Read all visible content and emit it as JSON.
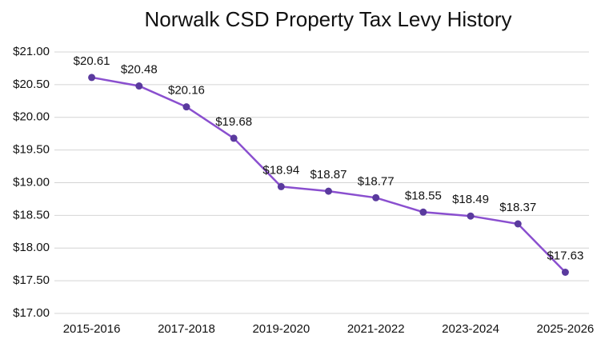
{
  "chart_data": {
    "type": "line",
    "title": "Norwalk CSD Property Tax Levy History",
    "categories": [
      "2015-2016",
      null,
      "2017-2018",
      null,
      "2019-2020",
      null,
      "2021-2022",
      null,
      "2023-2024",
      null,
      "2025-2026"
    ],
    "series": [
      {
        "name": "Property Tax Levy",
        "color": "#8a4fcf",
        "marker_color": "#5a3a9e",
        "values": [
          20.61,
          20.48,
          20.16,
          19.68,
          18.94,
          18.87,
          18.77,
          18.55,
          18.49,
          18.37,
          17.63
        ],
        "value_labels": [
          "$20.61",
          "$20.48",
          "$20.16",
          "$19.68",
          "$18.94",
          "$18.87",
          "$18.77",
          "$18.55",
          "$18.49",
          "$18.37",
          "$17.63"
        ]
      }
    ],
    "ylim": [
      17,
      21
    ],
    "yticks": [
      {
        "value": 17,
        "label": "$17.00"
      },
      {
        "value": 17.5,
        "label": "$17.50"
      },
      {
        "value": 18,
        "label": "$18.00"
      },
      {
        "value": 18.5,
        "label": "$18.50"
      },
      {
        "value": 19,
        "label": "$19.00"
      },
      {
        "value": 19.5,
        "label": "$19.50"
      },
      {
        "value": 20,
        "label": "$20.00"
      },
      {
        "value": 20.5,
        "label": "$20.50"
      },
      {
        "value": 21,
        "label": "$21.00"
      }
    ],
    "grid": true
  }
}
